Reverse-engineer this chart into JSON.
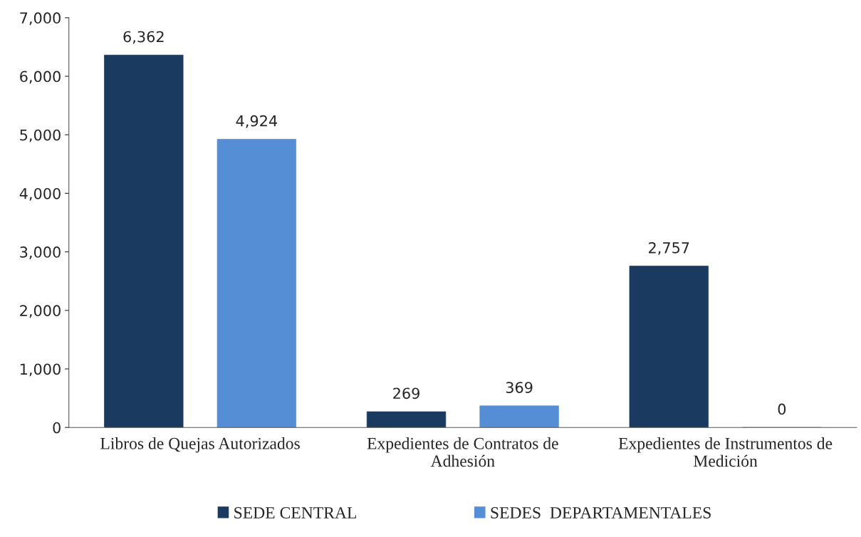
{
  "chart_data": {
    "type": "bar",
    "categories": [
      "Libros de Quejas Autorizados",
      "Expedientes de Contratos de\nAdhesión",
      "Expedientes de Instrumentos de\nMedición"
    ],
    "series": [
      {
        "name": "SEDE CENTRAL",
        "color": "#1b3a60",
        "values": [
          6362,
          269,
          2757
        ],
        "value_labels": [
          "6,362",
          "269",
          "2,757"
        ]
      },
      {
        "name": "SEDES  DEPARTAMENTALES",
        "color": "#558ed5",
        "values": [
          4924,
          369,
          0
        ],
        "value_labels": [
          "4,924",
          "369",
          "0"
        ]
      }
    ],
    "ylim": [
      0,
      7000
    ],
    "yticks": [
      0,
      {
        "value": 1000,
        "label": "1,000"
      },
      {
        "value": 2000,
        "label": "2,000"
      },
      {
        "value": 3000,
        "label": "3,000"
      },
      {
        "value": 4000,
        "label": "4,000"
      },
      {
        "value": 5000,
        "label": "5,000"
      },
      {
        "value": 6000,
        "label": "6,000"
      },
      {
        "value": 7000,
        "label": "7,000"
      }
    ],
    "legend": "bottom",
    "grid": false
  }
}
